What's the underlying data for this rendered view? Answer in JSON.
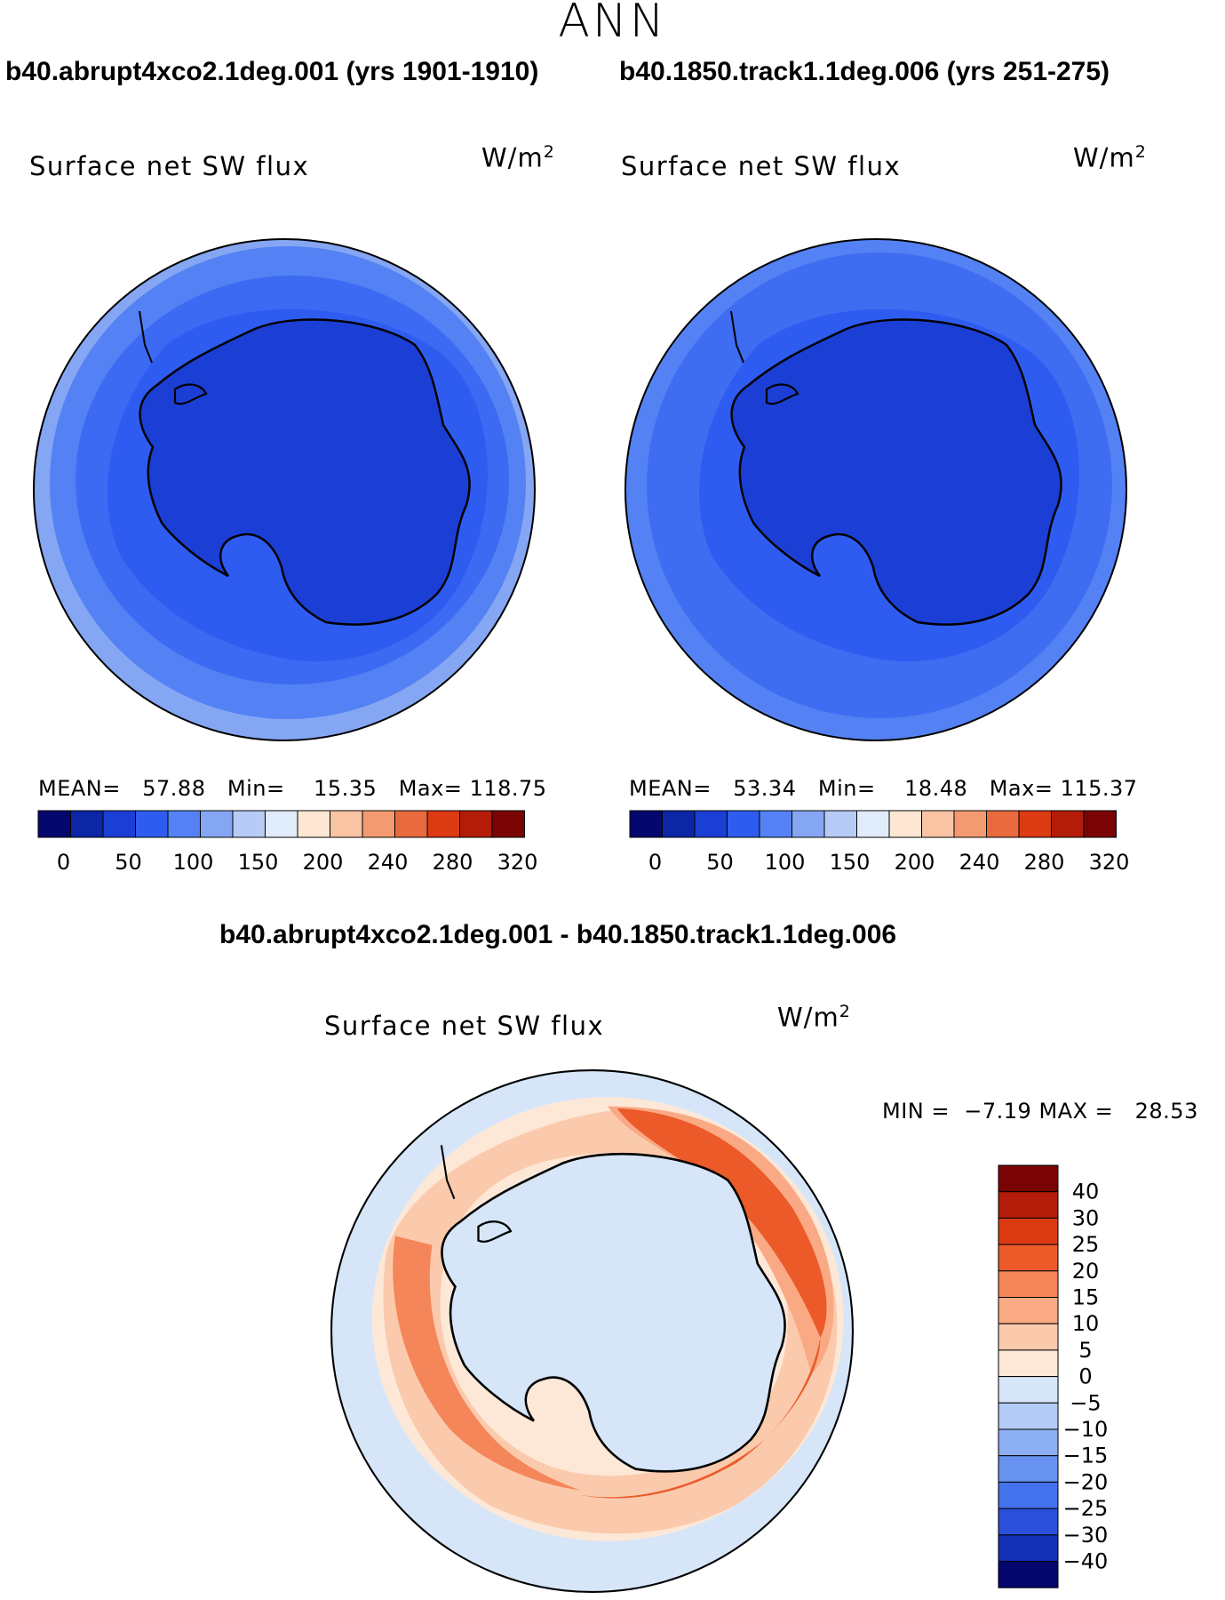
{
  "season": "ANN",
  "variable": "Surface net SW flux",
  "units_base": "W/m",
  "units_exp": "2",
  "panels": [
    {
      "case_title": "b40.abrupt4xco2.1deg.001 (yrs 1901-1910)",
      "mean_label": "MEAN=",
      "mean": "57.88",
      "min_label": "Min=",
      "min": "15.35",
      "max_label": "Max=",
      "max": "118.75"
    },
    {
      "case_title": "b40.1850.track1.1deg.006 (yrs 251-275)",
      "mean_label": "MEAN=",
      "mean": "53.34",
      "min_label": "Min=",
      "min": "18.48",
      "max_label": "Max=",
      "max": "115.37"
    }
  ],
  "diff": {
    "title": "b40.abrupt4xco2.1deg.001 - b40.1850.track1.1deg.006",
    "min_label": "MIN =",
    "min": "−7.19",
    "max_label": "MAX =",
    "max": "28.53"
  },
  "chart_data": [
    {
      "type": "heatmap",
      "projection": "south-polar-stereographic",
      "title": "b40.abrupt4xco2.1deg.001 (yrs 1901-1910)",
      "variable": "Surface net SW flux",
      "units": "W/m2",
      "mean": 57.88,
      "min": 15.35,
      "max": 118.75,
      "colorbar_levels": [
        0,
        50,
        100,
        150,
        200,
        240,
        280,
        320
      ],
      "colorbar_tick_labels": [
        "0",
        "50",
        "100",
        "150",
        "200",
        "240",
        "280",
        "320"
      ],
      "colorbar_colors": [
        "#05066e",
        "#0d26a6",
        "#1b3fd4",
        "#2f5cf0",
        "#5482f4",
        "#85a6f2",
        "#b6cbf5",
        "#e1ecfa",
        "#fde7d4",
        "#f9c4a4",
        "#f39a70",
        "#e86a3e",
        "#dc3a13",
        "#b31c08",
        "#7a0404"
      ]
    },
    {
      "type": "heatmap",
      "projection": "south-polar-stereographic",
      "title": "b40.1850.track1.1deg.006 (yrs 251-275)",
      "variable": "Surface net SW flux",
      "units": "W/m2",
      "mean": 53.34,
      "min": 18.48,
      "max": 115.37,
      "colorbar_levels": [
        0,
        50,
        100,
        150,
        200,
        240,
        280,
        320
      ],
      "colorbar_tick_labels": [
        "0",
        "50",
        "100",
        "150",
        "200",
        "240",
        "280",
        "320"
      ],
      "colorbar_colors": [
        "#05066e",
        "#0d26a6",
        "#1b3fd4",
        "#2f5cf0",
        "#5482f4",
        "#85a6f2",
        "#b6cbf5",
        "#e1ecfa",
        "#fde7d4",
        "#f9c4a4",
        "#f39a70",
        "#e86a3e",
        "#dc3a13",
        "#b31c08",
        "#7a0404"
      ]
    },
    {
      "type": "heatmap",
      "projection": "south-polar-stereographic",
      "title": "b40.abrupt4xco2.1deg.001 - b40.1850.track1.1deg.006",
      "variable": "Surface net SW flux",
      "units": "W/m2",
      "min": -7.19,
      "max": 28.53,
      "colorbar_levels": [
        40,
        30,
        25,
        20,
        15,
        10,
        5,
        0,
        -5,
        -10,
        -15,
        -20,
        -25,
        -30,
        -40
      ],
      "colorbar_tick_labels": [
        "40",
        "30",
        "25",
        "20",
        "15",
        "10",
        "5",
        "0",
        "−5",
        "−10",
        "−15",
        "−20",
        "−25",
        "−30",
        "−40"
      ],
      "colorbar_colors": [
        "#7a0404",
        "#b31c08",
        "#dc3a13",
        "#ec5a2a",
        "#f5865a",
        "#f9aa84",
        "#fbcaad",
        "#fde8d8",
        "#d6e6f8",
        "#b2ccf5",
        "#8cb0f3",
        "#6792f0",
        "#4472ec",
        "#2a50da",
        "#1330b4",
        "#05066e"
      ]
    }
  ]
}
